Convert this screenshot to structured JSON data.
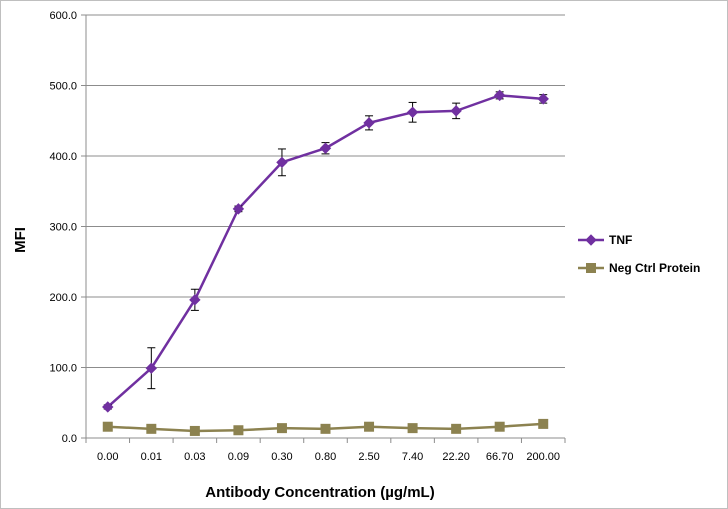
{
  "chart_data": {
    "type": "line",
    "title": "",
    "xlabel": "Antibody Concentration (µg/mL)",
    "ylabel": "MFI",
    "categories": [
      "0.00",
      "0.01",
      "0.03",
      "0.09",
      "0.30",
      "0.80",
      "2.50",
      "7.40",
      "22.20",
      "66.70",
      "200.00"
    ],
    "ylim": [
      0,
      600
    ],
    "yticks": [
      "0.0",
      "100.0",
      "200.0",
      "300.0",
      "400.0",
      "500.0",
      "600.0"
    ],
    "ytick_values": [
      0,
      100,
      200,
      300,
      400,
      500,
      600
    ],
    "grid": "horizontal",
    "legend": "right",
    "series": [
      {
        "name": "TNF",
        "color": "#7030a0",
        "marker": "diamond",
        "values": [
          44,
          99,
          196,
          325,
          391,
          411,
          447,
          462,
          464,
          486,
          481
        ],
        "error": [
          3,
          29,
          15,
          4,
          19,
          8,
          10,
          14,
          11,
          5,
          6
        ]
      },
      {
        "name": "Neg Ctrl Protein",
        "color": "#8c8250",
        "marker": "square",
        "values": [
          16,
          13,
          10,
          11,
          14,
          13,
          16,
          14,
          13,
          16,
          20
        ],
        "error": [
          0,
          0,
          0,
          0,
          0,
          0,
          0,
          0,
          0,
          0,
          0
        ]
      }
    ]
  }
}
